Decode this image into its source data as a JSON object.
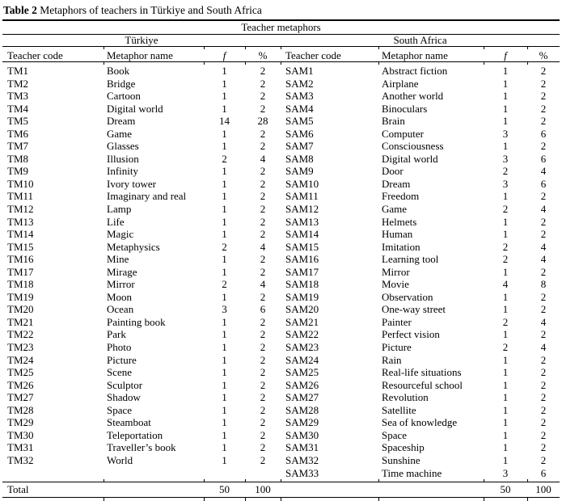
{
  "title": {
    "bold": "Table 2",
    "rest": " Metaphors of teachers in Türkiye and South Africa"
  },
  "table": {
    "span_header": "Teacher metaphors",
    "left_group": "Türkiye",
    "right_group": "South Africa",
    "columns": [
      "Teacher code",
      "Metaphor name",
      "f",
      "%"
    ],
    "left_rows": [
      [
        "TM1",
        "Book",
        1,
        2
      ],
      [
        "TM2",
        "Bridge",
        1,
        2
      ],
      [
        "TM3",
        "Cartoon",
        1,
        2
      ],
      [
        "TM4",
        "Digital world",
        1,
        2
      ],
      [
        "TM5",
        "Dream",
        14,
        28
      ],
      [
        "TM6",
        "Game",
        1,
        2
      ],
      [
        "TM7",
        "Glasses",
        1,
        2
      ],
      [
        "TM8",
        "Illusion",
        2,
        4
      ],
      [
        "TM9",
        "Infinity",
        1,
        2
      ],
      [
        "TM10",
        "Ivory tower",
        1,
        2
      ],
      [
        "TM11",
        "Imaginary and real",
        1,
        2
      ],
      [
        "TM12",
        "Lamp",
        1,
        2
      ],
      [
        "TM13",
        "Life",
        1,
        2
      ],
      [
        "TM14",
        "Magic",
        1,
        2
      ],
      [
        "TM15",
        "Metaphysics",
        2,
        4
      ],
      [
        "TM16",
        "Mine",
        1,
        2
      ],
      [
        "TM17",
        "Mirage",
        1,
        2
      ],
      [
        "TM18",
        "Mirror",
        2,
        4
      ],
      [
        "TM19",
        "Moon",
        1,
        2
      ],
      [
        "TM20",
        "Ocean",
        3,
        6
      ],
      [
        "TM21",
        "Painting book",
        1,
        2
      ],
      [
        "TM22",
        "Park",
        1,
        2
      ],
      [
        "TM23",
        "Photo",
        1,
        2
      ],
      [
        "TM24",
        "Picture",
        1,
        2
      ],
      [
        "TM25",
        "Scene",
        1,
        2
      ],
      [
        "TM26",
        "Sculptor",
        1,
        2
      ],
      [
        "TM27",
        "Shadow",
        1,
        2
      ],
      [
        "TM28",
        "Space",
        1,
        2
      ],
      [
        "TM29",
        "Steamboat",
        1,
        2
      ],
      [
        "TM30",
        "Teleportation",
        1,
        2
      ],
      [
        "TM31",
        "Traveller’s book",
        1,
        2
      ],
      [
        "TM32",
        "World",
        1,
        2
      ]
    ],
    "right_rows": [
      [
        "SAM1",
        "Abstract fiction",
        1,
        2
      ],
      [
        "SAM2",
        "Airplane",
        1,
        2
      ],
      [
        "SAM3",
        "Another world",
        1,
        2
      ],
      [
        "SAM4",
        "Binoculars",
        1,
        2
      ],
      [
        "SAM5",
        "Brain",
        1,
        2
      ],
      [
        "SAM6",
        "Computer",
        3,
        6
      ],
      [
        "SAM7",
        "Consciousness",
        1,
        2
      ],
      [
        "SAM8",
        "Digital world",
        3,
        6
      ],
      [
        "SAM9",
        "Door",
        2,
        4
      ],
      [
        "SAM10",
        "Dream",
        3,
        6
      ],
      [
        "SAM11",
        "Freedom",
        1,
        2
      ],
      [
        "SAM12",
        "Game",
        2,
        4
      ],
      [
        "SAM13",
        "Helmets",
        1,
        2
      ],
      [
        "SAM14",
        "Human",
        1,
        2
      ],
      [
        "SAM15",
        "Imitation",
        2,
        4
      ],
      [
        "SAM16",
        "Learning tool",
        2,
        4
      ],
      [
        "SAM17",
        "Mirror",
        1,
        2
      ],
      [
        "SAM18",
        "Movie",
        4,
        8
      ],
      [
        "SAM19",
        "Observation",
        1,
        2
      ],
      [
        "SAM20",
        "One-way street",
        1,
        2
      ],
      [
        "SAM21",
        "Painter",
        2,
        4
      ],
      [
        "SAM22",
        "Perfect vision",
        1,
        2
      ],
      [
        "SAM23",
        "Picture",
        2,
        4
      ],
      [
        "SAM24",
        "Rain",
        1,
        2
      ],
      [
        "SAM25",
        "Real-life situations",
        1,
        2
      ],
      [
        "SAM26",
        "Resourceful school",
        1,
        2
      ],
      [
        "SAM27",
        "Revolution",
        1,
        2
      ],
      [
        "SAM28",
        "Satellite",
        1,
        2
      ],
      [
        "SAM29",
        "Sea of knowledge",
        1,
        2
      ],
      [
        "SAM30",
        "Space",
        1,
        2
      ],
      [
        "SAM31",
        "Spaceship",
        1,
        2
      ],
      [
        "SAM32",
        "Sunshine",
        1,
        2
      ],
      [
        "SAM33",
        "Time machine",
        3,
        6
      ]
    ],
    "total_label": "Total",
    "left_total": [
      50,
      100
    ],
    "right_total": [
      50,
      100
    ]
  }
}
